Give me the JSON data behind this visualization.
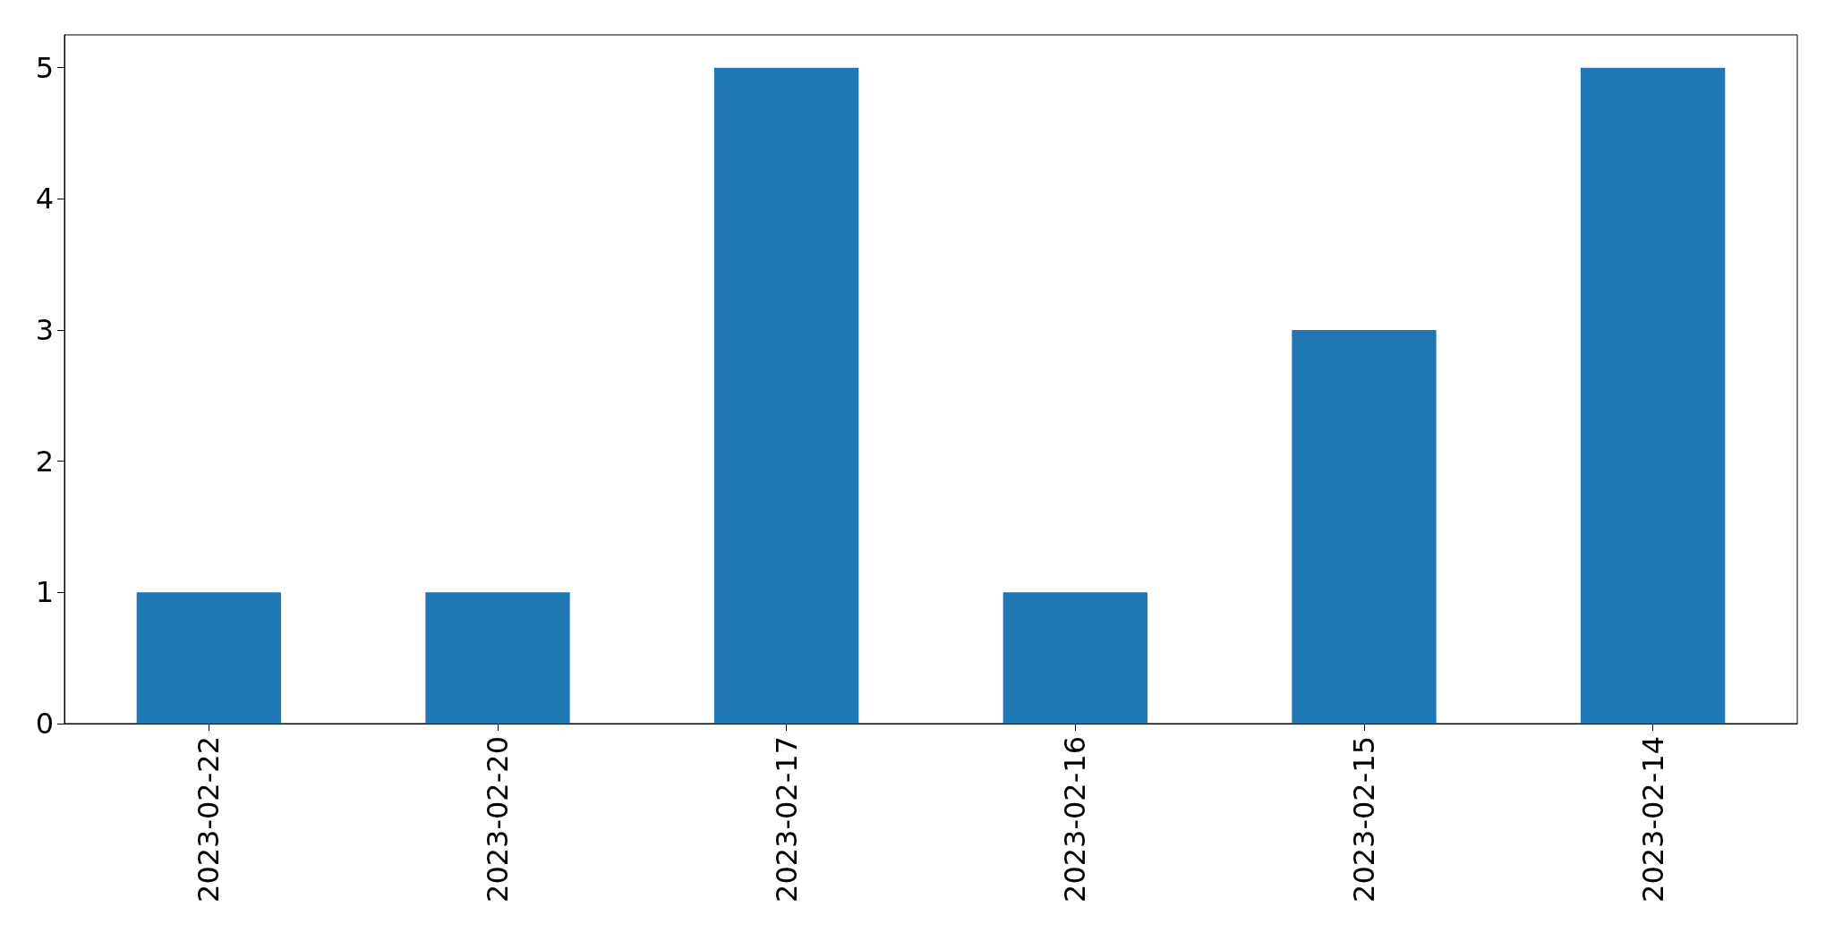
{
  "chart_data": {
    "type": "bar",
    "categories": [
      "2023-02-22",
      "2023-02-20",
      "2023-02-17",
      "2023-02-16",
      "2023-02-15",
      "2023-02-14"
    ],
    "values": [
      1,
      1,
      5,
      1,
      3,
      5
    ],
    "color": "#1f77b4",
    "ylim": [
      0,
      5.25
    ],
    "yticks": [
      0,
      1,
      2,
      3,
      4,
      5
    ],
    "grid": false
  }
}
